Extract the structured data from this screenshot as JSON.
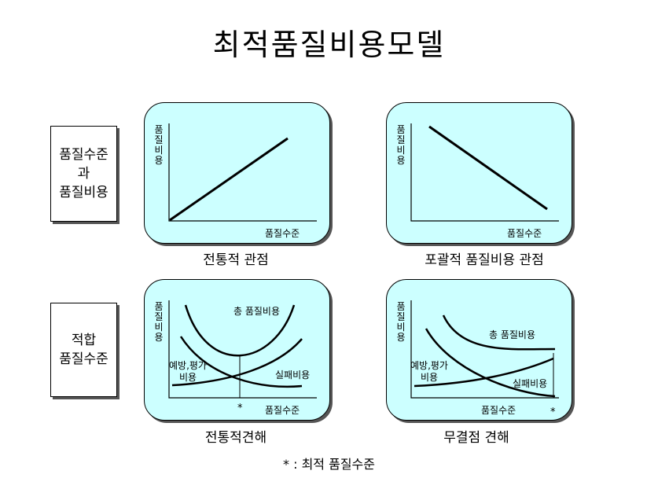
{
  "title": "최적품질비용모델",
  "row_labels": {
    "row1_lines": [
      "품질수준",
      "과",
      "품질비용"
    ],
    "row2_lines": [
      "적합",
      "품질수준"
    ]
  },
  "axes": {
    "y_label_chars": [
      "품",
      "질",
      "비",
      "용"
    ],
    "x_label": "품질수준"
  },
  "panels": {
    "traditional_view": {
      "caption": "전통적 관점"
    },
    "comprehensive_view": {
      "caption": "포괄적 품질비용 관점"
    },
    "traditional_opinion": {
      "caption": "전통적견해",
      "total_cost_label": "총 품질비용",
      "prevention_label_lines": [
        "예방,평가",
        "비용"
      ],
      "failure_label": "실패비용",
      "optimum_mark": "*"
    },
    "zero_defect_opinion": {
      "caption": "무결점 견해",
      "total_cost_label": "총 품질비용",
      "prevention_label_lines": [
        "예방,평가",
        "비용"
      ],
      "failure_label": "실패비용",
      "optimum_mark": "*"
    }
  },
  "footnote": "* : 최적 품질수준"
}
